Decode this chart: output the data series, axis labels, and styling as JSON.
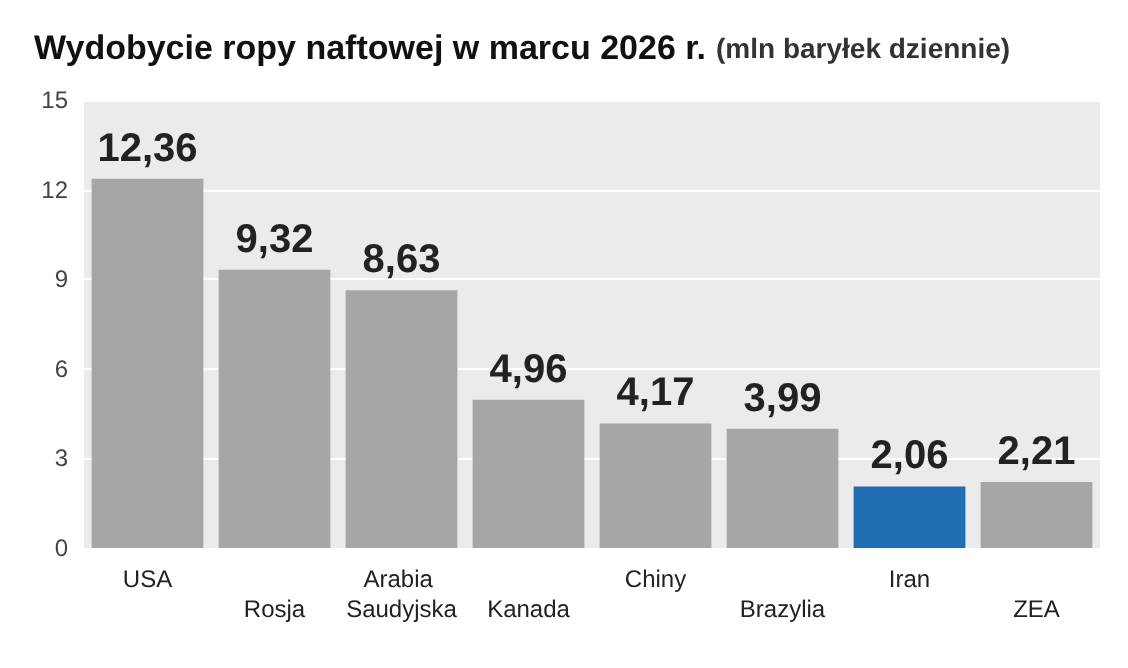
{
  "chart_data": {
    "type": "bar",
    "title": "Wydobycie ropy naftowej w marcu 2026 r.",
    "subtitle": "(mln baryłek dziennie)",
    "categories": [
      "USA",
      "Rosja",
      "Arabia Saudyjska",
      "Kanada",
      "Chiny",
      "Brazylia",
      "Iran",
      "ZEA"
    ],
    "values": [
      12.36,
      9.32,
      8.63,
      4.96,
      4.17,
      3.99,
      2.06,
      2.21
    ],
    "colors": [
      "#a6a6a6",
      "#a6a6a6",
      "#a6a6a6",
      "#a6a6a6",
      "#a6a6a6",
      "#a6a6a6",
      "#1f6db3",
      "#a6a6a6"
    ],
    "value_labels": [
      "12,36",
      "9,32",
      "8,63",
      "4,96",
      "4,17",
      "3,99",
      "2,06",
      "2,21"
    ],
    "ylim": [
      0,
      15
    ],
    "yticks": [
      0,
      3,
      6,
      9,
      12,
      15
    ],
    "grid": "y"
  }
}
